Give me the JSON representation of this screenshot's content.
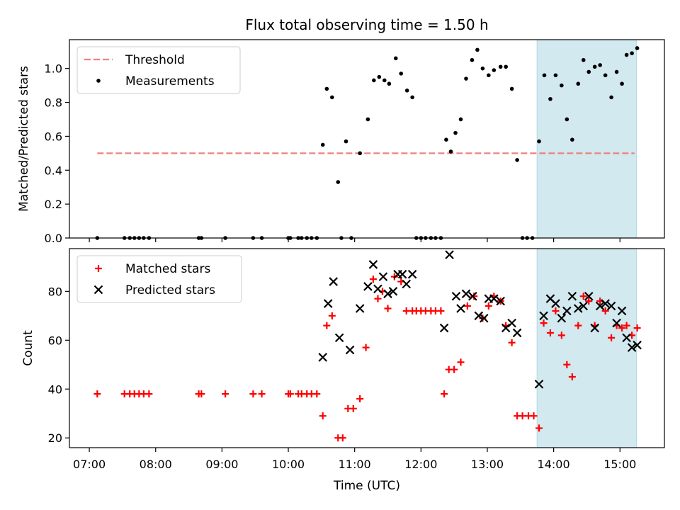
{
  "title": "Flux total observing time = 1.50 h",
  "xlabel": "Time (UTC)",
  "x_tick_labels": [
    "07:00",
    "08:00",
    "09:00",
    "10:00",
    "11:00",
    "12:00",
    "13:00",
    "14:00",
    "15:00"
  ],
  "highlight_color": "#d2e9f0",
  "chart_data": [
    {
      "type": "scatter",
      "ylabel": "Matched/Predicted stars",
      "ylim": [
        0,
        1.17
      ],
      "yticks": [
        0.0,
        0.2,
        0.4,
        0.6,
        0.8,
        1.0
      ],
      "y_tick_labels": [
        "0.0",
        "0.2",
        "0.4",
        "0.6",
        "0.8",
        "1.0"
      ],
      "xlim_hours": [
        6.7,
        15.67
      ],
      "highlight_span_hours": [
        13.75,
        15.25
      ],
      "legend_position": "upper-left",
      "series": [
        {
          "name": "Threshold",
          "style": "dashed-line",
          "color": "#f08080",
          "x_hours": [
            7.12,
            15.22
          ],
          "y": [
            0.5,
            0.5
          ]
        },
        {
          "name": "Measurements",
          "style": "dot",
          "color": "#000000",
          "x_hours": [
            7.12,
            7.53,
            7.61,
            7.68,
            7.75,
            7.82,
            7.9,
            8.65,
            8.69,
            9.05,
            9.47,
            9.6,
            10.0,
            10.03,
            10.15,
            10.2,
            10.28,
            10.35,
            10.43,
            10.52,
            10.58,
            10.66,
            10.75,
            10.8,
            10.87,
            10.95,
            11.08,
            11.2,
            11.29,
            11.37,
            11.45,
            11.52,
            11.62,
            11.7,
            11.79,
            11.87,
            11.93,
            12.0,
            12.07,
            12.15,
            12.22,
            12.3,
            12.38,
            12.45,
            12.52,
            12.6,
            12.68,
            12.77,
            12.85,
            12.93,
            13.02,
            13.1,
            13.2,
            13.28,
            13.37,
            13.45,
            13.53,
            13.6,
            13.68,
            13.78,
            13.86,
            13.95,
            14.03,
            14.12,
            14.2,
            14.28,
            14.37,
            14.45,
            14.53,
            14.62,
            14.7,
            14.78,
            14.87,
            14.95,
            15.03,
            15.1,
            15.18,
            15.26
          ],
          "y": [
            0.0,
            0.0,
            0.0,
            0.0,
            0.0,
            0.0,
            0.0,
            0.0,
            0.0,
            0.0,
            0.0,
            0.0,
            0.0,
            0.0,
            0.0,
            0.0,
            0.0,
            0.0,
            0.0,
            0.55,
            0.88,
            0.83,
            0.33,
            0.0,
            0.57,
            0.0,
            0.5,
            0.7,
            0.93,
            0.95,
            0.93,
            0.91,
            1.06,
            0.97,
            0.87,
            0.83,
            0.0,
            0.0,
            0.0,
            0.0,
            0.0,
            0.0,
            0.58,
            0.51,
            0.62,
            0.7,
            0.94,
            1.05,
            1.11,
            1.0,
            0.96,
            0.99,
            1.01,
            1.01,
            0.88,
            0.46,
            0.0,
            0.0,
            0.0,
            0.57,
            0.96,
            0.82,
            0.96,
            0.9,
            0.7,
            0.58,
            0.91,
            1.05,
            0.98,
            1.01,
            1.02,
            0.96,
            0.83,
            0.98,
            0.91,
            1.08,
            1.09,
            1.12
          ]
        }
      ]
    },
    {
      "type": "scatter",
      "ylabel": "Count",
      "ylim": [
        16,
        97.5
      ],
      "yticks": [
        20,
        40,
        60,
        80
      ],
      "y_tick_labels": [
        "20",
        "40",
        "60",
        "80"
      ],
      "xlim_hours": [
        6.7,
        15.67
      ],
      "highlight_span_hours": [
        13.75,
        15.25
      ],
      "legend_position": "upper-left",
      "series": [
        {
          "name": "Matched stars",
          "style": "plus",
          "color": "#ff0000",
          "x_hours": [
            7.12,
            7.53,
            7.61,
            7.68,
            7.75,
            7.82,
            7.9,
            8.65,
            8.69,
            9.05,
            9.47,
            9.6,
            10.0,
            10.03,
            10.15,
            10.2,
            10.28,
            10.35,
            10.43,
            10.52,
            10.58,
            10.66,
            10.75,
            10.82,
            10.9,
            10.98,
            11.08,
            11.17,
            11.28,
            11.35,
            11.42,
            11.5,
            11.6,
            11.7,
            11.78,
            11.87,
            11.93,
            12.0,
            12.07,
            12.15,
            12.22,
            12.3,
            12.35,
            12.42,
            12.5,
            12.6,
            12.7,
            12.8,
            12.93,
            13.02,
            13.1,
            13.2,
            13.28,
            13.37,
            13.45,
            13.53,
            13.62,
            13.7,
            13.78,
            13.85,
            13.95,
            14.03,
            14.12,
            14.2,
            14.28,
            14.37,
            14.45,
            14.53,
            14.62,
            14.7,
            14.78,
            14.87,
            14.95,
            15.03,
            15.1,
            15.18,
            15.26
          ],
          "y": [
            38,
            38,
            38,
            38,
            38,
            38,
            38,
            38,
            38,
            38,
            38,
            38,
            38,
            38,
            38,
            38,
            38,
            38,
            38,
            29,
            66,
            70,
            20,
            20,
            32,
            32,
            36,
            57,
            85,
            77,
            80,
            73,
            86,
            84,
            72,
            72,
            72,
            72,
            72,
            72,
            72,
            72,
            38,
            48,
            48,
            51,
            74,
            78,
            69,
            74,
            78,
            76,
            66,
            59,
            29,
            29,
            29,
            29,
            24,
            67,
            63,
            72,
            62,
            50,
            45,
            66,
            78,
            76,
            66,
            76,
            72,
            61,
            66,
            65,
            66,
            62,
            65
          ]
        },
        {
          "name": "Predicted stars",
          "style": "x",
          "color": "#000000",
          "x_hours": [
            10.52,
            10.6,
            10.68,
            10.77,
            10.93,
            11.08,
            11.2,
            11.28,
            11.35,
            11.43,
            11.5,
            11.58,
            11.65,
            11.72,
            11.78,
            11.87,
            12.35,
            12.43,
            12.53,
            12.6,
            12.68,
            12.78,
            12.87,
            12.95,
            13.02,
            13.1,
            13.2,
            13.28,
            13.37,
            13.45,
            13.78,
            13.85,
            13.95,
            14.03,
            14.12,
            14.2,
            14.28,
            14.37,
            14.45,
            14.53,
            14.62,
            14.7,
            14.78,
            14.87,
            14.95,
            15.03,
            15.1,
            15.18,
            15.26
          ],
          "y": [
            53,
            75,
            84,
            61,
            56,
            73,
            82,
            91,
            81,
            86,
            79,
            80,
            87,
            87,
            83,
            87,
            65,
            95,
            78,
            73,
            79,
            78,
            70,
            69,
            77,
            77,
            76,
            65,
            67,
            63,
            42,
            70,
            77,
            75,
            69,
            72,
            78,
            73,
            74,
            78,
            65,
            74,
            75,
            74,
            67,
            72,
            61,
            57,
            58
          ]
        }
      ]
    }
  ]
}
